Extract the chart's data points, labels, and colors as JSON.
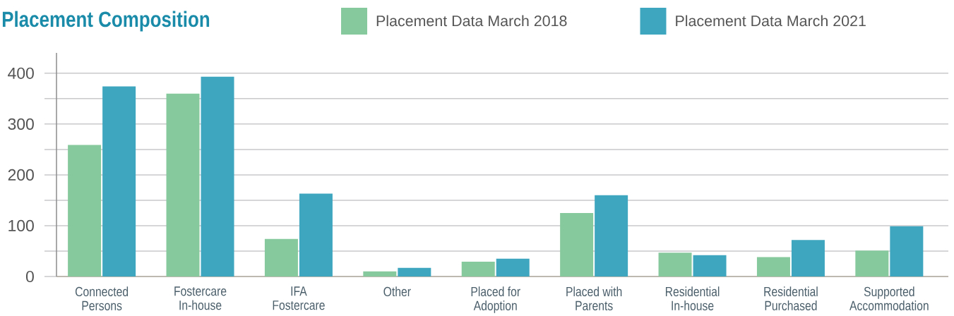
{
  "chart_data": {
    "type": "bar",
    "title": "Placement Composition",
    "categories": [
      "Connected Persons",
      "Fostercare In-house",
      "IFA Fostercare",
      "Other",
      "Placed for Adoption",
      "Placed with Parents",
      "Residential In-house",
      "Residential Purchased",
      "Supported Accommodation"
    ],
    "series": [
      {
        "name": "Placement Data March 2018",
        "color": "#86c99c",
        "values": [
          259,
          360,
          74,
          10,
          29,
          125,
          47,
          38,
          51
        ]
      },
      {
        "name": "Placement Data March 2021",
        "color": "#3fa6bf",
        "values": [
          374,
          393,
          163,
          17,
          35,
          160,
          42,
          72,
          99
        ]
      }
    ],
    "ylim": [
      0,
      440
    ],
    "yticks": [
      0,
      {
        "value": 50,
        "label": null
      },
      100,
      {
        "value": 150,
        "label": null
      },
      200,
      {
        "value": 250,
        "label": null
      },
      300,
      {
        "value": 350,
        "label": null
      },
      400
    ],
    "grid": "y",
    "legend": "top"
  }
}
